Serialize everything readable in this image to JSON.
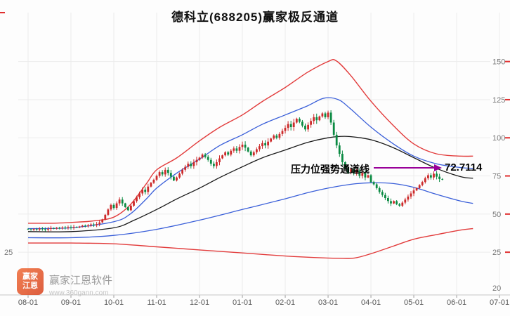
{
  "title": "德科立(688205)赢家极反通道",
  "annotation": {
    "label": "压力位强势通道线",
    "value": "72.7114",
    "arrow_color": "#990099"
  },
  "watermark": {
    "logo_line1": "赢家",
    "logo_line2": "江恩",
    "brand": "赢家江恩软件",
    "url": "www.360gann.com"
  },
  "chart_data": {
    "type": "candlestick",
    "title": "德科立(688205)赢家极反通道",
    "x_axis": {
      "labels": [
        "08-01",
        "09-01",
        "10-01",
        "11-01",
        "12-01",
        "01-01",
        "02-01",
        "03-01",
        "04-01",
        "05-01",
        "06-01",
        "07-01"
      ]
    },
    "y_axis": {
      "ticks": [
        25,
        50,
        75,
        100,
        125,
        150
      ],
      "left_label": "25",
      "bottom_label": "20",
      "ylim": [
        20,
        165
      ]
    },
    "colors": {
      "grid": "#ececec",
      "axis_line": "#c8c8c8",
      "axis_text": "#777777",
      "tick_red": "#e03030"
    },
    "candles": {
      "day_step": 1.4,
      "first_open": 40.3,
      "up_color": "#cc2a2a",
      "down_color": "#0a8a42",
      "closes": [
        40.0,
        39.6,
        40.2,
        39.8,
        40.5,
        40.1,
        39.7,
        40.3,
        40.8,
        40.4,
        41.0,
        40.6,
        41.2,
        40.8,
        41.4,
        41.0,
        41.6,
        41.2,
        41.8,
        42.4,
        42.0,
        42.6,
        43.2,
        42.8,
        43.5,
        44.5,
        46.5,
        49.5,
        53.0,
        56.0,
        54.0,
        57.0,
        59.5,
        57.0,
        54.5,
        52.5,
        55.5,
        58.5,
        61.0,
        63.5,
        66.0,
        64.5,
        68.0,
        70.5,
        72.5,
        75.0,
        77.5,
        76.0,
        79.0,
        77.0,
        74.5,
        72.0,
        74.0,
        76.5,
        79.0,
        81.0,
        83.0,
        81.5,
        84.0,
        85.5,
        87.0,
        89.0,
        87.5,
        85.5,
        83.0,
        81.5,
        84.0,
        86.5,
        88.5,
        90.5,
        89.0,
        91.5,
        93.0,
        91.5,
        94.0,
        95.5,
        93.5,
        91.0,
        88.5,
        90.5,
        92.5,
        94.5,
        96.5,
        95.0,
        97.5,
        99.5,
        101.5,
        100.0,
        102.5,
        104.5,
        106.5,
        109.0,
        107.0,
        110.0,
        112.5,
        110.5,
        108.0,
        105.5,
        108.5,
        111.0,
        113.5,
        111.5,
        114.0,
        116.0,
        113.5,
        116.5,
        110.0,
        102.0,
        95.0,
        89.5,
        84.0,
        80.0,
        77.0,
        79.5,
        76.5,
        78.5,
        75.0,
        77.0,
        74.0,
        75.5,
        71.0,
        69.5,
        67.0,
        64.5,
        62.5,
        60.5,
        58.5,
        57.0,
        58.5,
        56.5,
        55.5,
        57.5,
        59.5,
        61.5,
        63.5,
        65.5,
        67.0,
        69.0,
        71.0,
        73.5,
        75.5,
        74.0,
        76.5,
        74.5,
        73.0,
        72.7
      ]
    },
    "lines": [
      {
        "name": "upper-red",
        "color": "#e23b3b",
        "width": 1.4,
        "points": [
          [
            0,
            44
          ],
          [
            12,
            44
          ],
          [
            21,
            44.5
          ],
          [
            32,
            45.5
          ],
          [
            42,
            48
          ],
          [
            50,
            56
          ],
          [
            58,
            70
          ],
          [
            63,
            79
          ],
          [
            73,
            87
          ],
          [
            84,
            98
          ],
          [
            94,
            107
          ],
          [
            105,
            115
          ],
          [
            115,
            124
          ],
          [
            126,
            133
          ],
          [
            137,
            143
          ],
          [
            147,
            150
          ],
          [
            151,
            150.5
          ],
          [
            158,
            141
          ],
          [
            168,
            124
          ],
          [
            179,
            108
          ],
          [
            189,
            96
          ],
          [
            200,
            89.5
          ],
          [
            212,
            88
          ],
          [
            218,
            88
          ]
        ]
      },
      {
        "name": "upper-blue",
        "color": "#3a5fd9",
        "width": 1.3,
        "points": [
          [
            0,
            40.5
          ],
          [
            21,
            41
          ],
          [
            42,
            45
          ],
          [
            50,
            50
          ],
          [
            58,
            60
          ],
          [
            63,
            67
          ],
          [
            73,
            77
          ],
          [
            84,
            86
          ],
          [
            94,
            95
          ],
          [
            105,
            102
          ],
          [
            115,
            109
          ],
          [
            126,
            115
          ],
          [
            137,
            121
          ],
          [
            145,
            126
          ],
          [
            152,
            125
          ],
          [
            158,
            119
          ],
          [
            168,
            107
          ],
          [
            179,
            96
          ],
          [
            189,
            88
          ],
          [
            200,
            83
          ],
          [
            212,
            80.5
          ],
          [
            218,
            80
          ]
        ]
      },
      {
        "name": "middle-black",
        "color": "#1a1a1a",
        "width": 1.3,
        "points": [
          [
            0,
            38.5
          ],
          [
            21,
            38.5
          ],
          [
            42,
            41
          ],
          [
            52,
            46
          ],
          [
            63,
            53
          ],
          [
            73,
            60
          ],
          [
            84,
            67
          ],
          [
            94,
            74
          ],
          [
            105,
            81
          ],
          [
            115,
            87
          ],
          [
            126,
            92
          ],
          [
            137,
            97
          ],
          [
            147,
            100
          ],
          [
            155,
            101
          ],
          [
            163,
            100
          ],
          [
            170,
            98
          ],
          [
            179,
            93.5
          ],
          [
            189,
            87
          ],
          [
            200,
            80
          ],
          [
            212,
            74.5
          ],
          [
            218,
            73.5
          ]
        ]
      },
      {
        "name": "lower-blue",
        "color": "#3a5fd9",
        "width": 1.3,
        "points": [
          [
            0,
            34.5
          ],
          [
            21,
            34.5
          ],
          [
            42,
            36
          ],
          [
            63,
            40
          ],
          [
            84,
            46
          ],
          [
            105,
            53
          ],
          [
            126,
            60
          ],
          [
            137,
            64
          ],
          [
            147,
            67
          ],
          [
            158,
            69.5
          ],
          [
            168,
            70.5
          ],
          [
            179,
            70
          ],
          [
            189,
            67.5
          ],
          [
            200,
            63
          ],
          [
            212,
            58.5
          ],
          [
            218,
            57
          ]
        ]
      },
      {
        "name": "lower-red",
        "color": "#e23b3b",
        "width": 1.4,
        "points": [
          [
            0,
            31
          ],
          [
            21,
            31
          ],
          [
            42,
            30.5
          ],
          [
            63,
            28.5
          ],
          [
            84,
            26.5
          ],
          [
            105,
            24.5
          ],
          [
            126,
            22.5
          ],
          [
            140,
            21.5
          ],
          [
            152,
            21
          ],
          [
            160,
            21.2
          ],
          [
            168,
            24
          ],
          [
            179,
            29
          ],
          [
            189,
            33.5
          ],
          [
            200,
            36.5
          ],
          [
            212,
            39.5
          ],
          [
            218,
            40.5
          ]
        ]
      }
    ]
  }
}
